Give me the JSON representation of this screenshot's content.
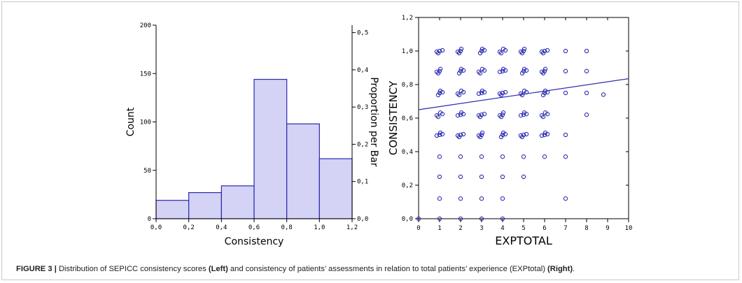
{
  "figure": {
    "label": "FIGURE 3 |",
    "caption_part1": " Distribution of SEPICC consistency scores ",
    "left_word": "(Left)",
    "caption_part2": " and consistency of patients’ assessments in relation to total patients’ experience (EXPtotal) ",
    "right_word": "(Right)",
    "caption_end": "."
  },
  "chart_data": [
    {
      "type": "bar",
      "bins": [
        [
          0.0,
          0.2
        ],
        [
          0.2,
          0.4
        ],
        [
          0.4,
          0.6
        ],
        [
          0.6,
          0.8
        ],
        [
          0.8,
          1.0
        ],
        [
          1.0,
          1.2
        ]
      ],
      "values": [
        19,
        27,
        34,
        144,
        98,
        62
      ],
      "xlabel": "Consistency",
      "ylabel": "Count",
      "y2label": "Proportion per Bar",
      "xlim": [
        0,
        1.2
      ],
      "ylim": [
        0,
        200
      ],
      "y2lim": [
        0,
        0.52
      ],
      "x_ticks": [
        "0,0",
        "0,2",
        "0,4",
        "0,6",
        "0,8",
        "1,0",
        "1,2"
      ],
      "y_ticks": [
        "0",
        "50",
        "100",
        "150",
        "200"
      ],
      "y2_ticks": [
        "0,0",
        "0,1",
        "0,2",
        "0,3",
        "0,4",
        "0,5"
      ],
      "colors": {
        "fill": "#d4d2f5",
        "edge": "#2a2ab0",
        "axis": "#000000"
      }
    },
    {
      "type": "scatter",
      "xlabel": "EXPTOTAL",
      "ylabel": "CONSISTENCY",
      "xlim": [
        0,
        10
      ],
      "ylim": [
        0,
        1.2
      ],
      "x_ticks": [
        "0",
        "1",
        "2",
        "3",
        "4",
        "5",
        "6",
        "7",
        "8",
        "9",
        "10"
      ],
      "y_ticks": [
        "0,0",
        "0,2",
        "0,4",
        "0,6",
        "0,8",
        "1,0",
        "1,2"
      ],
      "trend_line": {
        "x": [
          0,
          10
        ],
        "y": [
          0.65,
          0.835
        ]
      },
      "points": [
        [
          0,
          0.0
        ],
        [
          1,
          0.0
        ],
        [
          1,
          0.12
        ],
        [
          1,
          0.25
        ],
        [
          1,
          0.37
        ],
        [
          1,
          0.5
        ],
        [
          1,
          0.62
        ],
        [
          1,
          0.75
        ],
        [
          1,
          0.88
        ],
        [
          1,
          1.0
        ],
        [
          2,
          0.0
        ],
        [
          2,
          0.12
        ],
        [
          2,
          0.25
        ],
        [
          2,
          0.37
        ],
        [
          2,
          0.5
        ],
        [
          2,
          0.62
        ],
        [
          2,
          0.75
        ],
        [
          2,
          0.88
        ],
        [
          2,
          1.0
        ],
        [
          3,
          0.0
        ],
        [
          3,
          0.12
        ],
        [
          3,
          0.25
        ],
        [
          3,
          0.37
        ],
        [
          3,
          0.5
        ],
        [
          3,
          0.62
        ],
        [
          3,
          0.75
        ],
        [
          3,
          0.88
        ],
        [
          3,
          1.0
        ],
        [
          4,
          0.0
        ],
        [
          4,
          0.12
        ],
        [
          4,
          0.25
        ],
        [
          4,
          0.37
        ],
        [
          4,
          0.5
        ],
        [
          4,
          0.62
        ],
        [
          4,
          0.75
        ],
        [
          4,
          0.88
        ],
        [
          4,
          1.0
        ],
        [
          5,
          0.25
        ],
        [
          5,
          0.37
        ],
        [
          5,
          0.5
        ],
        [
          5,
          0.62
        ],
        [
          5,
          0.75
        ],
        [
          5,
          0.88
        ],
        [
          5,
          1.0
        ],
        [
          6,
          0.37
        ],
        [
          6,
          0.5
        ],
        [
          6,
          0.62
        ],
        [
          6,
          0.75
        ],
        [
          6,
          0.88
        ],
        [
          6,
          1.0
        ],
        [
          7,
          0.12
        ],
        [
          7,
          0.37
        ],
        [
          7,
          0.5
        ],
        [
          7,
          0.75
        ],
        [
          7,
          0.88
        ],
        [
          7,
          1.0
        ],
        [
          8,
          0.62
        ],
        [
          8,
          0.75
        ],
        [
          8,
          0.88
        ],
        [
          8,
          1.0
        ],
        [
          8.8,
          0.74
        ]
      ],
      "colors": {
        "marker": "#2a2ab0",
        "line": "#2a2ab0",
        "axis": "#000000"
      }
    }
  ]
}
